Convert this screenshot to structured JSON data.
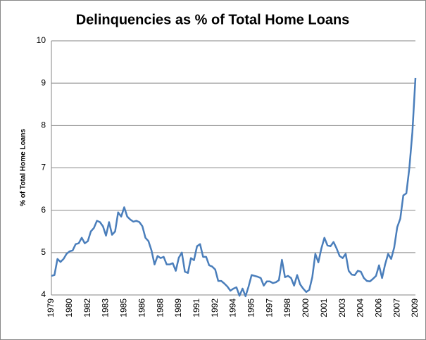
{
  "chart_data": {
    "type": "line",
    "title": "Delinquencies as % of Total Home Loans",
    "y_label": "% of Total Home Loans",
    "categories": [
      "1979",
      null,
      null,
      null,
      null,
      null,
      "1980",
      null,
      null,
      null,
      null,
      null,
      "1982",
      null,
      null,
      null,
      null,
      null,
      "1983",
      null,
      null,
      null,
      null,
      null,
      "1985",
      null,
      null,
      null,
      null,
      null,
      "1986",
      null,
      null,
      null,
      null,
      null,
      "1988",
      null,
      null,
      null,
      null,
      null,
      "1989",
      null,
      null,
      null,
      null,
      null,
      "1991",
      null,
      null,
      null,
      null,
      null,
      "1992",
      null,
      null,
      null,
      null,
      null,
      "1994",
      null,
      null,
      null,
      null,
      null,
      "1995",
      null,
      null,
      null,
      null,
      null,
      "1997",
      null,
      null,
      null,
      null,
      null,
      "1998",
      null,
      null,
      null,
      null,
      null,
      "2000",
      null,
      null,
      null,
      null,
      null,
      "2001",
      null,
      null,
      null,
      null,
      null,
      "2003",
      null,
      null,
      null,
      null,
      null,
      "2004",
      null,
      null,
      null,
      null,
      null,
      "2006",
      null,
      null,
      null,
      null,
      null,
      "2007",
      null,
      null,
      null,
      null,
      null,
      "2009"
    ],
    "values": [
      4.45,
      4.47,
      4.85,
      4.78,
      4.85,
      4.97,
      5.03,
      5.05,
      5.2,
      5.22,
      5.35,
      5.22,
      5.27,
      5.5,
      5.58,
      5.75,
      5.72,
      5.62,
      5.4,
      5.72,
      5.42,
      5.5,
      5.95,
      5.85,
      6.07,
      5.85,
      5.78,
      5.73,
      5.75,
      5.72,
      5.62,
      5.35,
      5.27,
      5.05,
      4.72,
      4.92,
      4.87,
      4.9,
      4.72,
      4.72,
      4.75,
      4.57,
      4.88,
      5.0,
      4.55,
      4.52,
      4.87,
      4.82,
      5.15,
      5.2,
      4.9,
      4.9,
      4.7,
      4.67,
      4.6,
      4.33,
      4.33,
      4.27,
      4.2,
      4.1,
      4.15,
      4.18,
      3.98,
      4.15,
      3.97,
      4.2,
      4.47,
      4.45,
      4.43,
      4.4,
      4.22,
      4.32,
      4.32,
      4.28,
      4.3,
      4.35,
      4.83,
      4.42,
      4.45,
      4.4,
      4.22,
      4.47,
      4.25,
      4.15,
      4.07,
      4.12,
      4.42,
      4.97,
      4.77,
      5.1,
      5.35,
      5.17,
      5.15,
      5.25,
      5.1,
      4.92,
      4.87,
      4.97,
      4.57,
      4.48,
      4.47,
      4.57,
      4.55,
      4.4,
      4.33,
      4.32,
      4.38,
      4.45,
      4.7,
      4.4,
      4.72,
      4.97,
      4.85,
      5.12,
      5.6,
      5.8,
      6.35,
      6.4,
      7.0,
      7.85,
      9.12
    ],
    "color": "#4a7ebb",
    "ylim": [
      4,
      10
    ],
    "yticks": [
      4,
      5,
      6,
      7,
      8,
      9,
      10
    ],
    "grid": true
  }
}
